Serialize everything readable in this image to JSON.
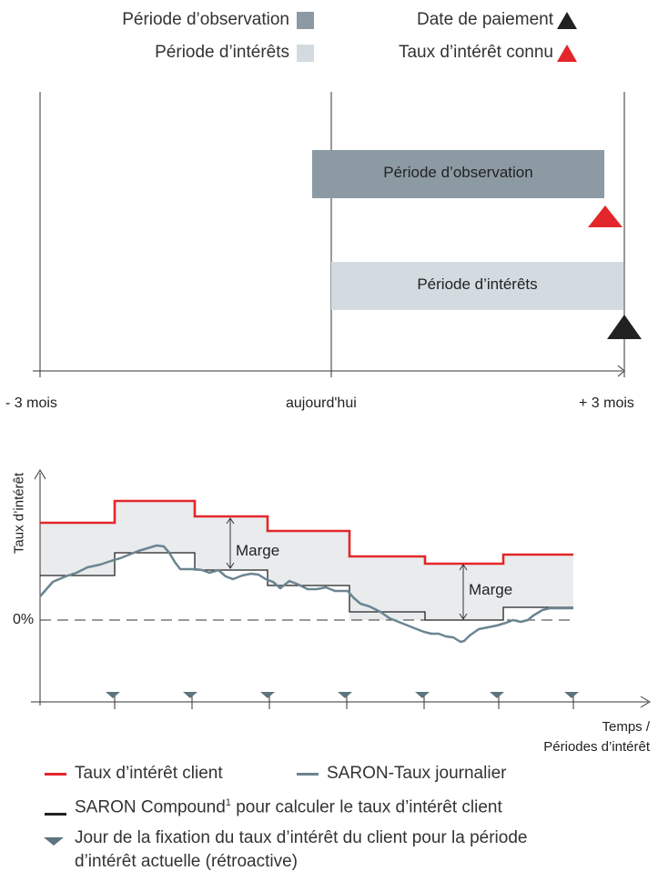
{
  "top_legend": {
    "observation_label": "Période d’observation",
    "interest_label": "Période d’intérêts",
    "payment_label": "Date de paiement",
    "known_rate_label": "Taux d’intérêt connu",
    "colors": {
      "observation": "#8c9aa3",
      "interest": "#d3dbe0",
      "payment": "#222222",
      "known": "#e3262b"
    }
  },
  "timeline": {
    "bar_observation": "Période d’observation",
    "bar_interest": "Période d’intérêts",
    "tick_left": "- 3 mois",
    "tick_mid": "aujourd'hui",
    "tick_right": "+ 3 mois"
  },
  "rate_chart": {
    "ylabel": "Taux d’intérêt",
    "zero_label": "0%",
    "margin_label_1": "Marge",
    "margin_label_2": "Marge",
    "xlabel_line1": "Temps /",
    "xlabel_line2": "Périodes d’intérêt",
    "colors": {
      "client": "#e3262b",
      "saron": "#6b8590",
      "compound": "#222222",
      "fill": "#e9ebed",
      "marker": "#5d7480"
    }
  },
  "bottom_legend": {
    "client_rate": "Taux d’intérêt client",
    "saron_daily": "SARON-Taux journalier",
    "compound": "SARON Compound",
    "compound_sup": "1",
    "compound_rest": " pour calculer le taux d’intérêt client",
    "fixing_line1": "Jour de la fixation du taux d’intérêt du client pour la période",
    "fixing_line2": "d’intérêt actuelle (rétroactive)"
  }
}
